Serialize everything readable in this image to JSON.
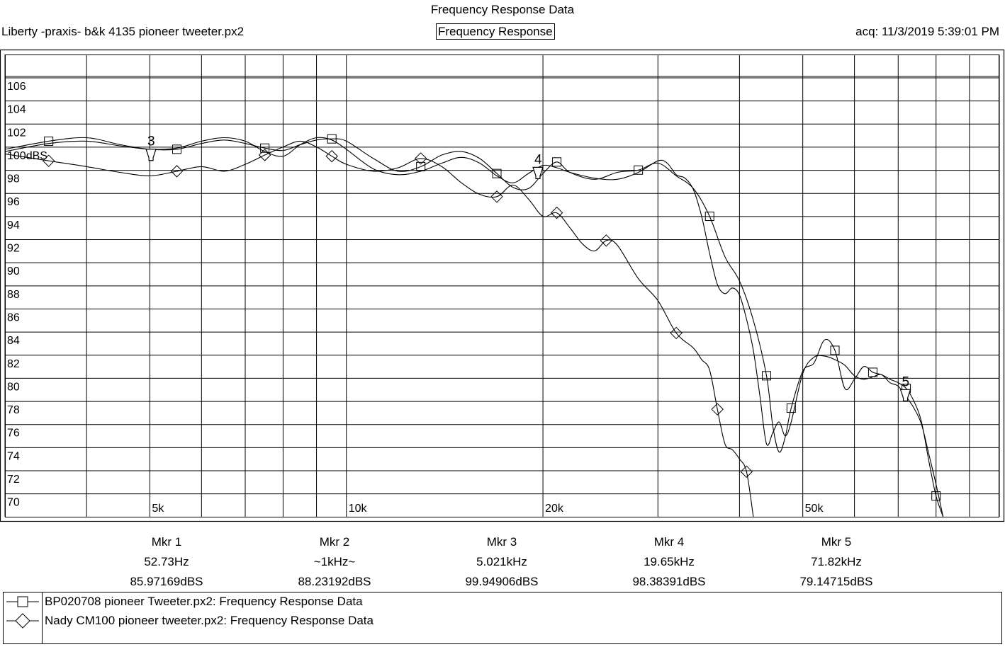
{
  "header": {
    "title": "Frequency Response Data",
    "file_name": "Liberty -praxis-  b&k 4135 pioneer tweeter.px2",
    "view_label": "Frequency Response",
    "acquired": "acq: 11/3/2019 5:39:01 PM"
  },
  "chart_data": {
    "type": "line",
    "title": "Frequency Response Data",
    "subtitle": "Frequency Response",
    "xlabel": "",
    "ylabel": "dBS",
    "x_scale": "log",
    "xlim": [
      3000,
      100000
    ],
    "ylim": [
      69,
      109
    ],
    "grid": true,
    "reference_label": "100dBS",
    "y_ticks": [
      {
        "value": 106,
        "label": "106"
      },
      {
        "value": 104,
        "label": "104"
      },
      {
        "value": 102,
        "label": "102"
      },
      {
        "value": 100,
        "label": "100dBS"
      },
      {
        "value": 98,
        "label": "98"
      },
      {
        "value": 96,
        "label": "96"
      },
      {
        "value": 94,
        "label": "94"
      },
      {
        "value": 92,
        "label": "92"
      },
      {
        "value": 90,
        "label": "90"
      },
      {
        "value": 88,
        "label": "88"
      },
      {
        "value": 86,
        "label": "86"
      },
      {
        "value": 84,
        "label": "84"
      },
      {
        "value": 82,
        "label": "82"
      },
      {
        "value": 80,
        "label": "80"
      },
      {
        "value": 78,
        "label": "78"
      },
      {
        "value": 76,
        "label": "76"
      },
      {
        "value": 74,
        "label": "74"
      },
      {
        "value": 72,
        "label": "72"
      },
      {
        "value": 70,
        "label": "70"
      }
    ],
    "x_ticks": [
      {
        "value": 5000,
        "label": "5k"
      },
      {
        "value": 10000,
        "label": "10k"
      },
      {
        "value": 20000,
        "label": "20k"
      },
      {
        "value": 50000,
        "label": "50k"
      }
    ],
    "x_gridlines": [
      3000,
      4000,
      5000,
      6000,
      7000,
      8000,
      9000,
      10000,
      20000,
      30000,
      40000,
      50000,
      60000,
      70000,
      80000,
      90000,
      100000
    ],
    "series": [
      {
        "name": "Liberty -praxis-  b&k 4135 pioneer tweeter",
        "symbol": "none",
        "points": [
          [
            3000,
            100.6
          ],
          [
            3500,
            101.3
          ],
          [
            4000,
            101.5
          ],
          [
            4500,
            101.1
          ],
          [
            5000,
            100.8
          ],
          [
            5500,
            100.9
          ],
          [
            6000,
            101.5
          ],
          [
            6500,
            101.8
          ],
          [
            7000,
            101.5
          ],
          [
            7500,
            100.6
          ],
          [
            8000,
            100.2
          ],
          [
            8500,
            101.2
          ],
          [
            9000,
            101.8
          ],
          [
            9500,
            101.6
          ],
          [
            10000,
            100.8
          ],
          [
            11000,
            99.1
          ],
          [
            12000,
            98.6
          ],
          [
            13000,
            98.9
          ],
          [
            14000,
            99.6
          ],
          [
            15000,
            100.1
          ],
          [
            16000,
            99.6
          ],
          [
            17000,
            98.5
          ],
          [
            18000,
            97.9
          ],
          [
            19000,
            98.7
          ],
          [
            20000,
            99.4
          ],
          [
            21000,
            99.2
          ],
          [
            22000,
            98.8
          ],
          [
            24000,
            98.3
          ],
          [
            26000,
            98.2
          ],
          [
            28000,
            98.8
          ],
          [
            30000,
            99.8
          ],
          [
            31000,
            99.6
          ],
          [
            32000,
            98.6
          ],
          [
            33000,
            98.3
          ],
          [
            34000,
            97.3
          ],
          [
            35000,
            95.0
          ],
          [
            36000,
            91.8
          ],
          [
            37000,
            89.1
          ],
          [
            38000,
            88.3
          ],
          [
            39000,
            88.8
          ],
          [
            40000,
            88.2
          ],
          [
            41000,
            86.1
          ],
          [
            42000,
            83.4
          ],
          [
            43000,
            79.4
          ],
          [
            44000,
            75.3
          ],
          [
            45000,
            76.3
          ],
          [
            46000,
            77.2
          ],
          [
            47000,
            76.0
          ],
          [
            48000,
            77.2
          ],
          [
            50000,
            81.4
          ],
          [
            52000,
            82.8
          ],
          [
            54000,
            82.9
          ],
          [
            56000,
            82.6
          ],
          [
            58000,
            82.1
          ],
          [
            60000,
            81.2
          ],
          [
            62000,
            80.9
          ],
          [
            64000,
            81.1
          ],
          [
            66000,
            81.3
          ],
          [
            68000,
            80.6
          ],
          [
            70000,
            80.3
          ],
          [
            72000,
            79.4
          ],
          [
            74000,
            78.4
          ],
          [
            76000,
            77.0
          ],
          [
            78000,
            74.4
          ],
          [
            80000,
            71.8
          ],
          [
            82000,
            69.0
          ]
        ]
      },
      {
        "name": "BP020708  pioneer Tweeter.px2:  Frequency Response Data",
        "symbol": "square",
        "points": [
          [
            3000,
            100.8
          ],
          [
            3500,
            101.5
          ],
          [
            4000,
            101.8
          ],
          [
            4500,
            101.2
          ],
          [
            5000,
            100.8
          ],
          [
            5500,
            100.8
          ],
          [
            6000,
            101.3
          ],
          [
            6500,
            101.6
          ],
          [
            7000,
            101.3
          ],
          [
            7500,
            100.9
          ],
          [
            8000,
            100.7
          ],
          [
            8500,
            101.2
          ],
          [
            9000,
            101.6
          ],
          [
            9500,
            101.7
          ],
          [
            10000,
            101.5
          ],
          [
            11000,
            100.0
          ],
          [
            12000,
            98.9
          ],
          [
            13000,
            99.3
          ],
          [
            14000,
            100.3
          ],
          [
            15000,
            100.6
          ],
          [
            16000,
            100.0
          ],
          [
            17000,
            98.7
          ],
          [
            18000,
            97.5
          ],
          [
            19000,
            97.4
          ],
          [
            20000,
            98.7
          ],
          [
            21000,
            99.7
          ],
          [
            22000,
            98.8
          ],
          [
            24000,
            98.2
          ],
          [
            26000,
            98.8
          ],
          [
            28000,
            99.0
          ],
          [
            30000,
            99.6
          ],
          [
            32000,
            98.5
          ],
          [
            34000,
            97.4
          ],
          [
            36000,
            95.0
          ],
          [
            38000,
            91.5
          ],
          [
            40000,
            89.4
          ],
          [
            42000,
            86.0
          ],
          [
            44000,
            81.2
          ],
          [
            45000,
            76.8
          ],
          [
            46000,
            74.6
          ],
          [
            47000,
            75.9
          ],
          [
            48000,
            78.4
          ],
          [
            50000,
            81.6
          ],
          [
            52000,
            82.3
          ],
          [
            54000,
            84.3
          ],
          [
            56000,
            83.4
          ],
          [
            58000,
            80.1
          ],
          [
            60000,
            80.9
          ],
          [
            62000,
            82.0
          ],
          [
            64000,
            81.5
          ],
          [
            66000,
            81.3
          ],
          [
            68000,
            80.9
          ],
          [
            70000,
            80.6
          ],
          [
            72000,
            80.1
          ],
          [
            74000,
            79.0
          ],
          [
            76000,
            77.2
          ],
          [
            78000,
            73.8
          ],
          [
            80000,
            70.8
          ],
          [
            82000,
            69.0
          ]
        ]
      },
      {
        "name": "Nady CM100 pioneer tweeter.px2:  Frequency Response Data",
        "symbol": "diamond",
        "points": [
          [
            3000,
            100.4
          ],
          [
            3500,
            99.8
          ],
          [
            4000,
            99.3
          ],
          [
            4500,
            98.8
          ],
          [
            5000,
            98.5
          ],
          [
            5500,
            98.9
          ],
          [
            6000,
            99.3
          ],
          [
            6500,
            98.9
          ],
          [
            7000,
            99.5
          ],
          [
            7500,
            100.3
          ],
          [
            8000,
            101.0
          ],
          [
            8500,
            101.5
          ],
          [
            9000,
            101.0
          ],
          [
            9500,
            100.2
          ],
          [
            10000,
            99.5
          ],
          [
            11000,
            98.9
          ],
          [
            12000,
            99.2
          ],
          [
            13000,
            100.0
          ],
          [
            14000,
            99.3
          ],
          [
            15000,
            97.9
          ],
          [
            16000,
            96.9
          ],
          [
            17000,
            96.7
          ],
          [
            18000,
            97.7
          ],
          [
            19000,
            96.5
          ],
          [
            20000,
            95.0
          ],
          [
            21000,
            95.3
          ],
          [
            22000,
            94.0
          ],
          [
            23000,
            92.6
          ],
          [
            24000,
            92.0
          ],
          [
            25000,
            92.9
          ],
          [
            26000,
            92.5
          ],
          [
            28000,
            89.6
          ],
          [
            30000,
            87.7
          ],
          [
            32000,
            84.9
          ],
          [
            34000,
            83.6
          ],
          [
            35000,
            82.6
          ],
          [
            36000,
            81.7
          ],
          [
            37000,
            78.3
          ],
          [
            38000,
            75.3
          ],
          [
            39000,
            74.8
          ],
          [
            40000,
            74.0
          ],
          [
            41000,
            72.9
          ],
          [
            42000,
            69.0
          ]
        ]
      }
    ],
    "markers": [
      {
        "id": "1",
        "label": "Mkr 1",
        "frequency": "52.73Hz",
        "level": "85.97169dBS",
        "on_chart": false
      },
      {
        "id": "2",
        "label": "Mkr 2",
        "frequency": "~1kHz~",
        "level": "88.23192dBS",
        "on_chart": false
      },
      {
        "id": "3",
        "label": "Mkr 3",
        "frequency": "5.021kHz",
        "level": "99.94906dBS",
        "on_chart": true,
        "x": 5021,
        "y": 99.95
      },
      {
        "id": "4",
        "label": "Mkr 4",
        "frequency": "19.65kHz",
        "level": "98.38391dBS",
        "on_chart": true,
        "x": 19650,
        "y": 98.38
      },
      {
        "id": "5",
        "label": "Mkr 5",
        "frequency": "71.82kHz",
        "level": "79.14715dBS",
        "on_chart": true,
        "x": 71820,
        "y": 79.15
      }
    ]
  },
  "legend": [
    {
      "symbol": "square",
      "label": "BP020708  pioneer Tweeter.px2:  Frequency Response Data"
    },
    {
      "symbol": "diamond",
      "label": "Nady CM100 pioneer tweeter.px2:  Frequency Response Data"
    }
  ]
}
